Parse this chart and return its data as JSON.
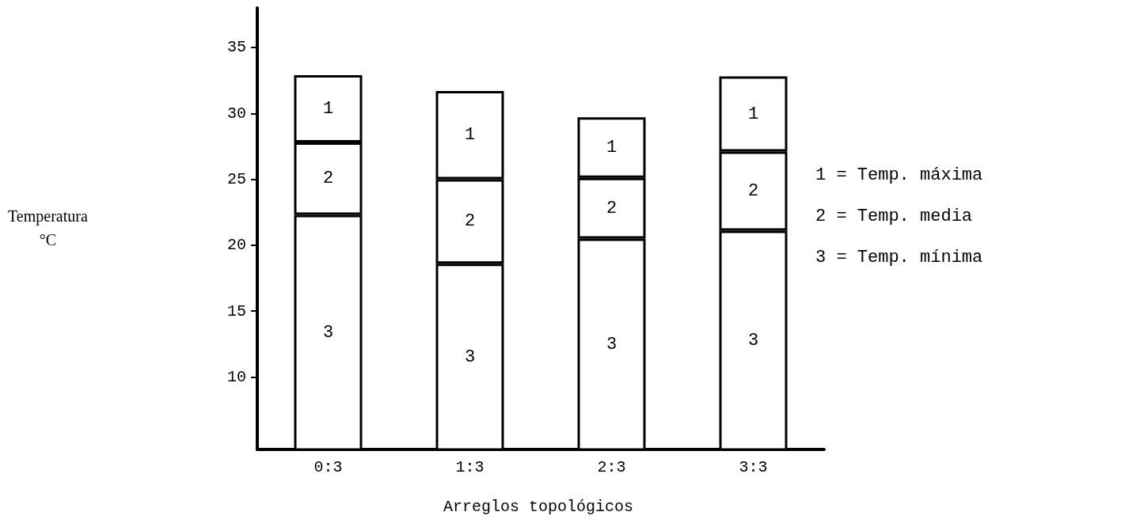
{
  "chart_data": {
    "type": "bar",
    "stacked": true,
    "xlabel": "Arreglos topológicos",
    "categories": [
      "0:3",
      "1:3",
      "2:3",
      "3:3"
    ],
    "series": [
      {
        "name": "3",
        "color": "#ffffff",
        "values": [
          22.3,
          18.6,
          20.5,
          21.1
        ]
      },
      {
        "name": "2",
        "color": "#ffffff",
        "values": [
          5.5,
          6.4,
          4.6,
          6.0
        ]
      },
      {
        "name": "1",
        "color": "#ffffff",
        "values": [
          5.1,
          6.7,
          4.6,
          5.7
        ]
      }
    ],
    "annotations": [
      "Temperatura °C",
      "1 = Temp. máxima",
      "2 = Temp. media",
      "3 = Temp. mínima"
    ],
    "ylim": [
      4.5,
      38
    ],
    "yticks": [
      10,
      15,
      20,
      25,
      30,
      35
    ],
    "grid": false
  }
}
